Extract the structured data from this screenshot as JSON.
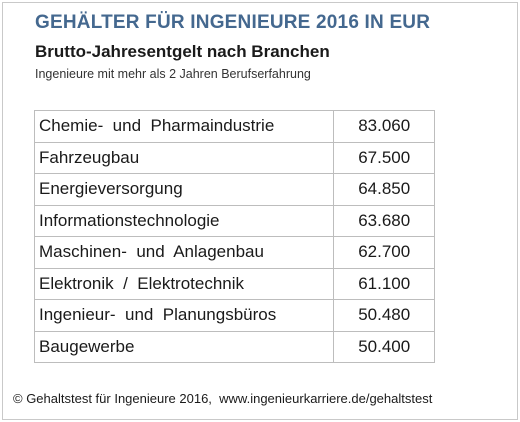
{
  "texts": {
    "title": "GEHÄLTER FÜR INGENIEURE 2016 IN EUR",
    "subtitle": "Brutto-Jahresentgelt nach Branchen",
    "note": "Ingenieure mit mehr als 2 Jahren Berufserfahrung",
    "footer": "© Gehaltstest für Ingenieure 2016,  www.ingenieurkarriere.de/gehaltstest"
  },
  "colors": {
    "title": "#44688f",
    "border": "#bdbdbd"
  },
  "chart_data": {
    "type": "table",
    "title": "GEHÄLTER FÜR INGENIEURE 2016 IN EUR",
    "subtitle": "Brutto-Jahresentgelt nach Branchen",
    "categories": [
      "Chemie-  und  Pharmaindustrie",
      "Fahrzeugbau",
      "Energieversorgung",
      "Informationstechnologie",
      "Maschinen-  und  Anlagenbau",
      "Elektronik  /  Elektrotechnik",
      "Ingenieur-  und  Planungsbüros",
      "Baugewerbe"
    ],
    "value_labels": [
      "83.060",
      "67.500",
      "64.850",
      "63.680",
      "62.700",
      "61.100",
      "50.480",
      "50.400"
    ],
    "values": [
      83060,
      67500,
      64850,
      63680,
      62700,
      61100,
      50480,
      50400
    ]
  }
}
